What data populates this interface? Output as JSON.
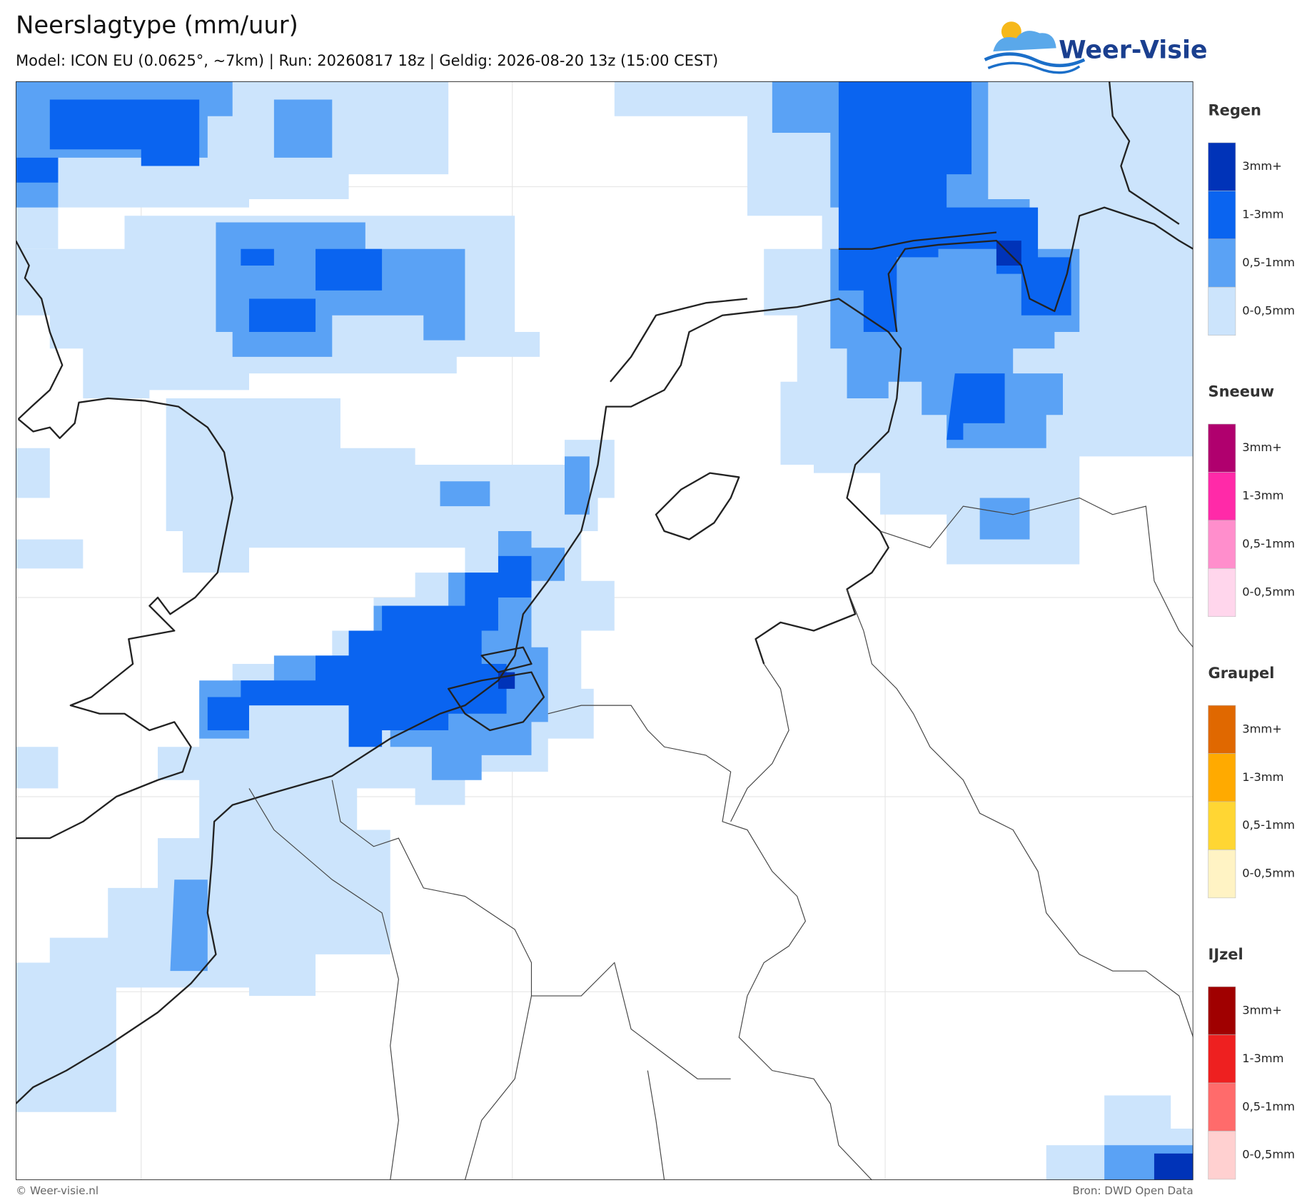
{
  "header": {
    "title": "Neerslagtype (mm/uur)",
    "subtitle": "Model: ICON EU (0.0625°, ~7km)  |  Run: 20260817 18z  |  Geldig: 2026-08-20 13z (15:00 CEST)"
  },
  "logo": {
    "text": "Weer-Visie"
  },
  "legend": {
    "groups": [
      {
        "name": "Regen",
        "items": [
          {
            "label": "3mm+",
            "color": "#0033b8"
          },
          {
            "label": "1-3mm",
            "color": "#0a64f0"
          },
          {
            "label": "0,5-1mm",
            "color": "#5aa2f5"
          },
          {
            "label": "0-0,5mm",
            "color": "#cce4fc"
          }
        ]
      },
      {
        "name": "Sneeuw",
        "items": [
          {
            "label": "3mm+",
            "color": "#b0006e"
          },
          {
            "label": "1-3mm",
            "color": "#ff2aa8"
          },
          {
            "label": "0,5-1mm",
            "color": "#ff8ecc"
          },
          {
            "label": "0-0,5mm",
            "color": "#ffd6ec"
          }
        ]
      },
      {
        "name": "Graupel",
        "items": [
          {
            "label": "3mm+",
            "color": "#e06800"
          },
          {
            "label": "1-3mm",
            "color": "#ffaa00"
          },
          {
            "label": "0,5-1mm",
            "color": "#ffd633"
          },
          {
            "label": "0-0,5mm",
            "color": "#fff3c4"
          }
        ]
      },
      {
        "name": "IJzel",
        "items": [
          {
            "label": "3mm+",
            "color": "#a00000"
          },
          {
            "label": "1-3mm",
            "color": "#ee2020"
          },
          {
            "label": "0,5-1mm",
            "color": "#ff6b6b"
          },
          {
            "label": "0-0,5mm",
            "color": "#ffd0d0"
          }
        ]
      }
    ]
  },
  "footer": {
    "copyright": "© Weer-visie.nl",
    "source": "Bron: DWD Open Data"
  }
}
